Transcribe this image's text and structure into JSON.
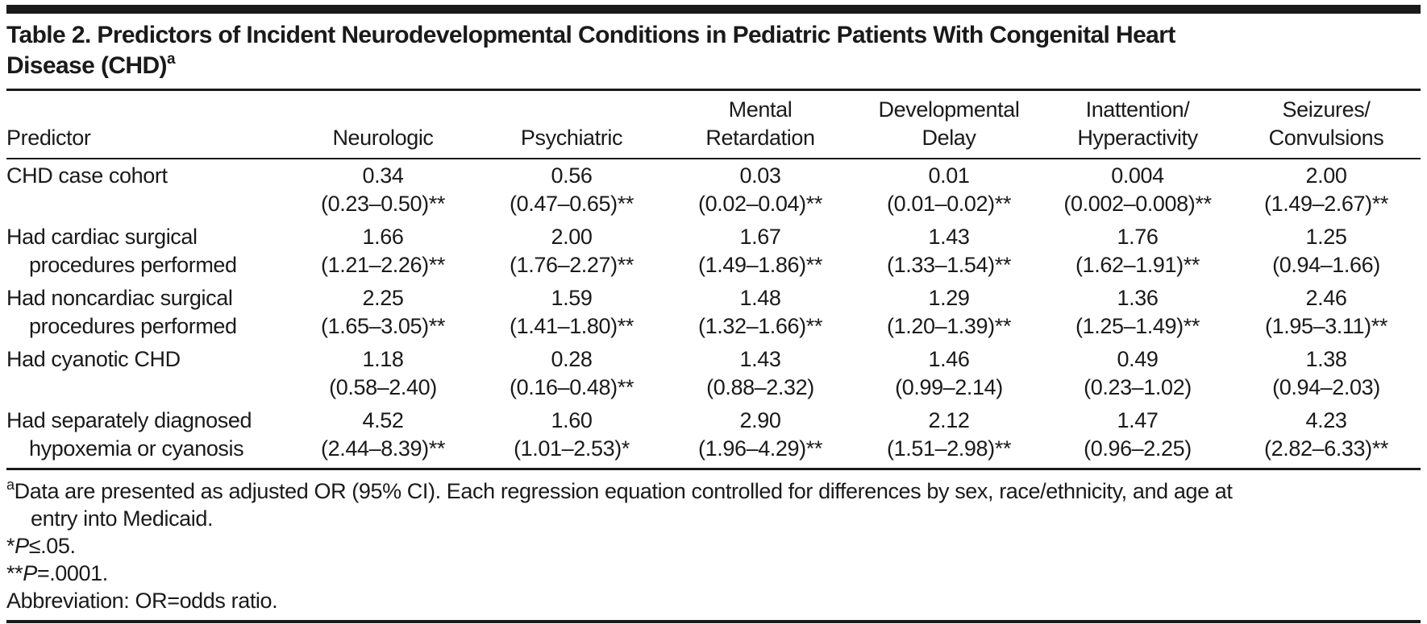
{
  "title": {
    "line1": "Table 2. Predictors of Incident Neurodevelopmental Conditions in Pediatric Patients With Congenital Heart",
    "line2": "Disease (CHD)",
    "superscript": "a"
  },
  "columns": [
    {
      "label": "Predictor"
    },
    {
      "label": "Neurologic"
    },
    {
      "label": "Psychiatric"
    },
    {
      "label": "Mental\nRetardation"
    },
    {
      "label": "Developmental\nDelay"
    },
    {
      "label": "Inattention/\nHyperactivity"
    },
    {
      "label": "Seizures/\nConvulsions"
    }
  ],
  "rows": [
    {
      "predictor_line1": "CHD case cohort",
      "predictor_line2": "",
      "cells": [
        {
          "or": "0.34",
          "ci": "(0.23–0.50)**"
        },
        {
          "or": "0.56",
          "ci": "(0.47–0.65)**"
        },
        {
          "or": "0.03",
          "ci": "(0.02–0.04)**"
        },
        {
          "or": "0.01",
          "ci": "(0.01–0.02)**"
        },
        {
          "or": "0.004",
          "ci": "(0.002–0.008)**"
        },
        {
          "or": "2.00",
          "ci": "(1.49–2.67)**"
        }
      ]
    },
    {
      "predictor_line1": "Had cardiac surgical",
      "predictor_line2": "procedures performed",
      "cells": [
        {
          "or": "1.66",
          "ci": "(1.21–2.26)**"
        },
        {
          "or": "2.00",
          "ci": "(1.76–2.27)**"
        },
        {
          "or": "1.67",
          "ci": "(1.49–1.86)**"
        },
        {
          "or": "1.43",
          "ci": "(1.33–1.54)**"
        },
        {
          "or": "1.76",
          "ci": "(1.62–1.91)**"
        },
        {
          "or": "1.25",
          "ci": "(0.94–1.66)"
        }
      ]
    },
    {
      "predictor_line1": "Had noncardiac surgical",
      "predictor_line2": "procedures performed",
      "cells": [
        {
          "or": "2.25",
          "ci": "(1.65–3.05)**"
        },
        {
          "or": "1.59",
          "ci": "(1.41–1.80)**"
        },
        {
          "or": "1.48",
          "ci": "(1.32–1.66)**"
        },
        {
          "or": "1.29",
          "ci": "(1.20–1.39)**"
        },
        {
          "or": "1.36",
          "ci": "(1.25–1.49)**"
        },
        {
          "or": "2.46",
          "ci": "(1.95–3.11)**"
        }
      ]
    },
    {
      "predictor_line1": "Had cyanotic CHD",
      "predictor_line2": "",
      "cells": [
        {
          "or": "1.18",
          "ci": "(0.58–2.40)"
        },
        {
          "or": "0.28",
          "ci": "(0.16–0.48)**"
        },
        {
          "or": "1.43",
          "ci": "(0.88–2.32)"
        },
        {
          "or": "1.46",
          "ci": "(0.99–2.14)"
        },
        {
          "or": "0.49",
          "ci": "(0.23–1.02)"
        },
        {
          "or": "1.38",
          "ci": "(0.94–2.03)"
        }
      ]
    },
    {
      "predictor_line1": "Had separately diagnosed",
      "predictor_line2": "hypoxemia or cyanosis",
      "cells": [
        {
          "or": "4.52",
          "ci": "(2.44–8.39)**"
        },
        {
          "or": "1.60",
          "ci": "(1.01–2.53)*"
        },
        {
          "or": "2.90",
          "ci": "(1.96–4.29)**"
        },
        {
          "or": "2.12",
          "ci": "(1.51–2.98)**"
        },
        {
          "or": "1.47",
          "ci": "(0.96–2.25)"
        },
        {
          "or": "4.23",
          "ci": "(2.82–6.33)**"
        }
      ]
    }
  ],
  "footnotes": {
    "a_superscript": "a",
    "a_line1": "Data are presented as adjusted OR (95% CI). Each regression equation controlled for differences by sex, race/ethnicity, and age at",
    "a_line2": "entry into Medicaid.",
    "star_marker": "*",
    "star_p": "P",
    "star_rest": "≤.05.",
    "dstar_marker": "**",
    "dstar_p": "P",
    "dstar_rest": "=.0001.",
    "abbreviation": "Abbreviation: OR=odds ratio."
  },
  "colors": {
    "text": "#1a1a1a",
    "rule": "#1a1a1a",
    "background": "#ffffff"
  }
}
